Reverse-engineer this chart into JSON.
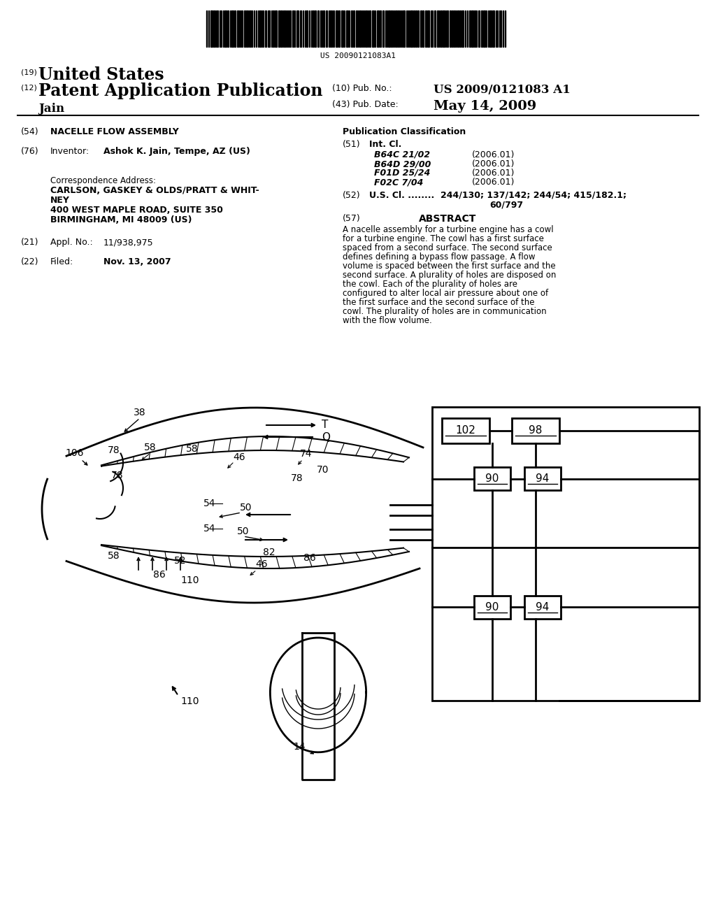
{
  "bg": "#ffffff",
  "barcode_num": "US 20090121083A1",
  "title19": "United States",
  "title12": "Patent Application Publication",
  "pub_no_label": "Pub. No.:",
  "pub_no": "US 2009/0121083 A1",
  "pub_date_label": "Pub. Date:",
  "pub_date": "May 14, 2009",
  "inventor_last": "Jain",
  "f54_label": "(54)",
  "f54": "NACELLE FLOW ASSEMBLY",
  "pub_class": "Publication Classification",
  "f51_label": "(51)",
  "f51": "Int. Cl.",
  "int_cl": [
    [
      "B64C 21/02",
      "(2006.01)"
    ],
    [
      "B64D 29/00",
      "(2006.01)"
    ],
    [
      "F01D 25/24",
      "(2006.01)"
    ],
    [
      "F02C 7/04",
      "(2006.01)"
    ]
  ],
  "f52_label": "(52)",
  "f52_head": "U.S. Cl.",
  "f52_val1": "244/130; 137/142; 244/54; 415/182.1;",
  "f52_val2": "60/797",
  "f76_label": "(76)",
  "f76_head": "Inventor:",
  "f76_val": "Ashok K. Jain, Tempe, AZ (US)",
  "corr_head": "Correspondence Address:",
  "corr1": "CARLSON, GASKEY & OLDS/PRATT & WHIT-",
  "corr2": "NEY",
  "corr3": "400 WEST MAPLE ROAD, SUITE 350",
  "corr4": "BIRMINGHAM, MI 48009 (US)",
  "f21_label": "(21)",
  "f21_head": "Appl. No.:",
  "f21_val": "11/938,975",
  "f22_label": "(22)",
  "f22_head": "Filed:",
  "f22_val": "Nov. 13, 2007",
  "abs_label": "(57)",
  "abs_title": "ABSTRACT",
  "abs_text": "A nacelle assembly for a turbine engine has a cowl for a turbine engine. The cowl has a first surface spaced from a second surface. The second surface defines defining a bypass flow passage. A flow volume is spaced between the first surface and the second surface. A plurality of holes are disposed on the cowl. Each of the plurality of holes are configured to alter local air pressure about one of the first surface and the second surface of the cowl. The plurality of holes are in communication with the flow volume."
}
